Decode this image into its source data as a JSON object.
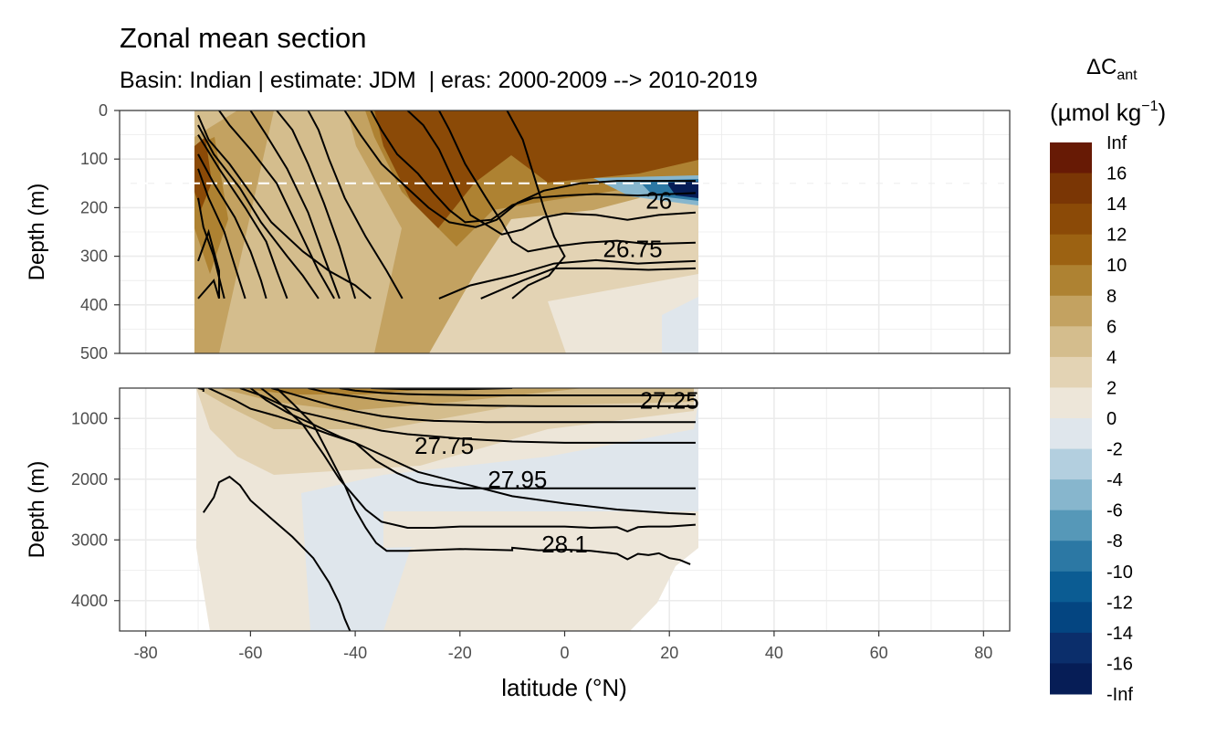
{
  "chart_data": {
    "type": "heatmap",
    "title": "Zonal mean section",
    "subtitle": "Basin: Indian | estimate: JDM  | eras: 2000-2009 --> 2010-2019",
    "xlabel": "latitude (°N)",
    "x_ticks": [
      -80,
      -60,
      -40,
      -20,
      0,
      20,
      40,
      60,
      80
    ],
    "xlim": [
      -85,
      85
    ],
    "panels": [
      {
        "name": "upper",
        "ylabel": "Depth (m)",
        "ylim": [
          500,
          0
        ],
        "y_ticks": [
          0,
          100,
          200,
          300,
          400,
          500
        ],
        "reference_depth_dashed": 150,
        "isopycnal_labels": [
          {
            "label": "26",
            "lat": 18,
            "depth": 185
          },
          {
            "label": "26.75",
            "lat": 13,
            "depth": 285
          }
        ]
      },
      {
        "name": "lower",
        "ylabel": "Depth (m)",
        "ylim": [
          4500,
          500
        ],
        "y_ticks": [
          1000,
          2000,
          3000,
          4000
        ],
        "isopycnal_labels": [
          {
            "label": "27.25",
            "lat": 20,
            "depth": 700
          },
          {
            "label": "27.75",
            "lat": -23,
            "depth": 1450
          },
          {
            "label": "27.95",
            "lat": -9,
            "depth": 2000
          },
          {
            "label": "28.1",
            "lat": 0,
            "depth": 3070
          }
        ]
      }
    ],
    "legend": {
      "title_main": "ΔC",
      "title_sub": "ant",
      "unit_main": "(µmol kg",
      "unit_sup": "−1",
      "unit_close": ")",
      "placement": "right",
      "labels": [
        "Inf",
        "16",
        "14",
        "12",
        "10",
        "8",
        "6",
        "4",
        "2",
        "0",
        "-2",
        "-4",
        "-6",
        "-8",
        "-10",
        "-12",
        "-14",
        "-16",
        "-Inf"
      ],
      "colors": [
        "#671a05",
        "#7a3605",
        "#8b4a07",
        "#9c6212",
        "#ae8232",
        "#c3a261",
        "#d4bd8d",
        "#e3d3b4",
        "#ede6d9",
        "#dfe6ec",
        "#b3cfdf",
        "#87b6cd",
        "#5698b8",
        "#2c78a4",
        "#0b5c93",
        "#044581",
        "#0b2e6b",
        "#061d56"
      ]
    }
  }
}
